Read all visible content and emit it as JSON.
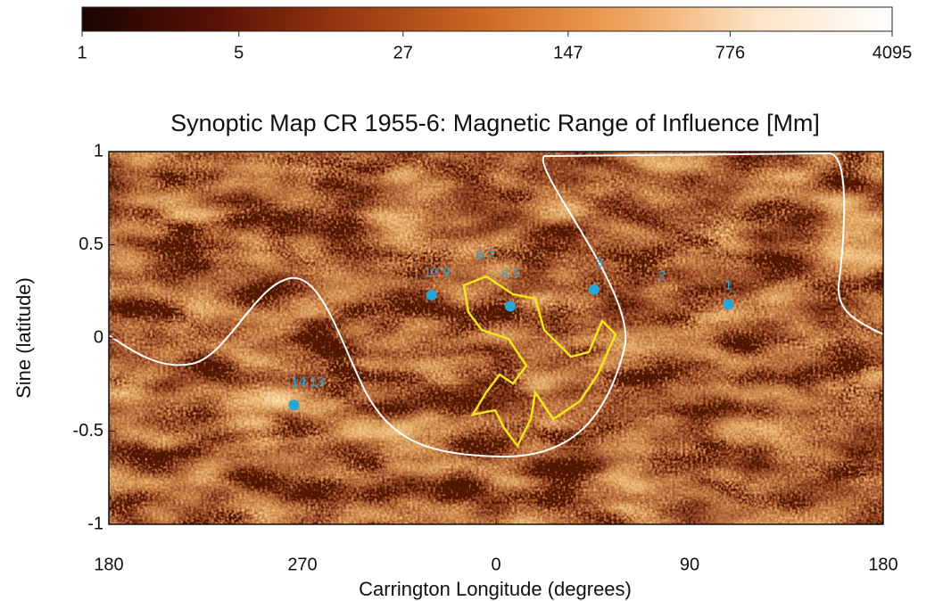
{
  "chart_data": {
    "type": "map",
    "title": "Synoptic Map CR 1955-6: Magnetic Range of Influence [Mm]",
    "xlabel": "Carrington Longitude (degrees)",
    "ylabel": "Sine (latitude)",
    "xlim": [
      180,
      540
    ],
    "xticks": [
      180,
      270,
      {
        "value": 360,
        "label": "0"
      },
      {
        "value": 450,
        "label": "90"
      },
      {
        "value": 540,
        "label": "180"
      }
    ],
    "ylim": [
      -1,
      1
    ],
    "yticks": [
      1,
      0.5,
      0,
      -0.5,
      -1
    ],
    "colorbar": {
      "lim": [
        1,
        4095
      ],
      "ticks": [
        1,
        5,
        27,
        147,
        776,
        4095
      ],
      "log": true,
      "colors": [
        "#1a0400",
        "#5a1206",
        "#9a3a12",
        "#cf6a24",
        "#eea25a",
        "#fbe3c4",
        "#ffffff"
      ]
    },
    "markers": {
      "color": "#2aa6d6",
      "x": [
        468,
        405.6,
        330,
        366.6,
        266
      ],
      "y": [
        0.18,
        0.26,
        0.23,
        0.17,
        -0.36
      ]
    },
    "annotations": [
      {
        "text": "1",
        "x": 468,
        "y": 0.28
      },
      {
        "text": "2",
        "x": 437,
        "y": 0.33
      },
      {
        "text": "3",
        "x": 408,
        "y": 0.4
      },
      {
        "text": "12 9",
        "x": 332.6,
        "y": 0.35
      },
      {
        "text": "8 7",
        "x": 355,
        "y": 0.44
      },
      {
        "text": "6 5",
        "x": 366.6,
        "y": 0.34
      },
      {
        "text": "14 13",
        "x": 272.5,
        "y": -0.24
      }
    ]
  }
}
